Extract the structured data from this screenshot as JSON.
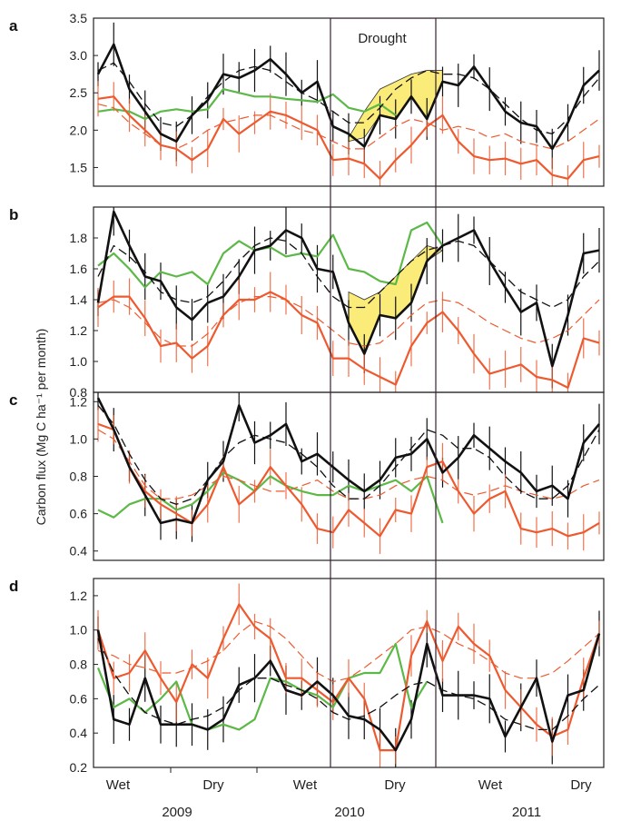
{
  "colors": {
    "black": "#111111",
    "red": "#ee5a2f",
    "green": "#5cb847",
    "drought": "#fbec7a",
    "frame": "#222222"
  },
  "figure": {
    "ylabel": "Carbon flux (Mg C ha⁻¹ per month)",
    "drought_label": "Drought",
    "season_labels": [
      "Wet",
      "Dry",
      "Wet",
      "Dry",
      "Wet",
      "Dry"
    ],
    "year_labels": [
      "2009",
      "2010",
      "2011"
    ]
  },
  "chart_data": [
    {
      "type": "line",
      "panel": "a",
      "ylim": [
        1.25,
        3.5
      ],
      "yticks": [
        "3.5",
        "3.0",
        "2.5",
        "2.0",
        "1.5"
      ],
      "ytick_values": [
        3.5,
        3.0,
        2.5,
        2.0,
        1.5
      ],
      "series": [
        {
          "color": "black",
          "style": "solid",
          "values": [
            2.75,
            3.15,
            2.55,
            2.25,
            1.95,
            1.85,
            2.2,
            2.4,
            2.75,
            2.7,
            2.8,
            2.95,
            2.75,
            2.5,
            2.65,
            2.05,
            1.95,
            1.78,
            2.2,
            2.15,
            2.45,
            2.15,
            2.65,
            2.6,
            2.85,
            2.55,
            2.25,
            2.1,
            2.05,
            1.75,
            2.1,
            2.6,
            2.8
          ]
        },
        {
          "color": "black",
          "style": "dashed",
          "values": [
            2.8,
            2.9,
            2.65,
            2.35,
            2.1,
            2.05,
            2.2,
            2.45,
            2.65,
            2.8,
            2.85,
            2.8,
            2.65,
            2.5,
            2.4,
            2.25,
            2.1,
            2.1,
            2.3,
            2.55,
            2.7,
            2.8,
            2.75,
            2.75,
            2.7,
            2.55,
            2.35,
            2.15,
            2.0,
            1.95,
            2.15,
            2.45,
            2.7
          ]
        },
        {
          "color": "red",
          "style": "solid",
          "values": [
            2.42,
            2.45,
            2.2,
            2.0,
            1.8,
            1.75,
            1.6,
            1.75,
            2.15,
            1.95,
            2.1,
            2.25,
            2.2,
            2.1,
            2.0,
            1.6,
            1.62,
            1.55,
            1.35,
            1.6,
            1.8,
            2.05,
            2.2,
            1.85,
            1.65,
            1.6,
            1.62,
            1.55,
            1.6,
            1.4,
            1.35,
            1.6,
            1.65
          ]
        },
        {
          "color": "red",
          "style": "dashed",
          "values": [
            2.35,
            2.3,
            2.1,
            1.95,
            1.8,
            1.75,
            1.85,
            2.0,
            2.1,
            2.15,
            2.2,
            2.2,
            2.1,
            2.0,
            1.95,
            1.85,
            1.75,
            1.75,
            1.9,
            2.05,
            2.15,
            2.1,
            2.0,
            2.05,
            2.0,
            1.9,
            1.95,
            1.85,
            1.8,
            1.75,
            1.85,
            2.0,
            2.15
          ]
        },
        {
          "color": "green",
          "style": "solid",
          "values": [
            2.25,
            2.28,
            2.25,
            2.15,
            2.25,
            2.28,
            2.25,
            2.28,
            2.55,
            2.5,
            2.45,
            2.45,
            2.42,
            2.4,
            2.38,
            2.48,
            2.3,
            2.25,
            2.35,
            2.2,
            null,
            null,
            null,
            null,
            null,
            null,
            null,
            null,
            null,
            null,
            null,
            null,
            null
          ]
        }
      ],
      "drought_band": {
        "upper": [
          1.9,
          2.25,
          2.55,
          2.65,
          2.75,
          2.8,
          2.8
        ],
        "lower": [
          1.85,
          1.9,
          2.2,
          2.15,
          2.45,
          2.15,
          2.65
        ],
        "start": 16
      }
    },
    {
      "type": "line",
      "panel": "b",
      "ylim": [
        0.8,
        2.0
      ],
      "yticks": [
        "1.8",
        "1.6",
        "1.4",
        "1.2",
        "1.0",
        "0.8"
      ],
      "ytick_values": [
        1.8,
        1.6,
        1.4,
        1.2,
        1.0,
        0.8
      ],
      "series": [
        {
          "color": "black",
          "style": "solid",
          "values": [
            1.38,
            1.97,
            1.75,
            1.55,
            1.52,
            1.35,
            1.27,
            1.38,
            1.42,
            1.55,
            1.72,
            1.75,
            1.85,
            1.8,
            1.6,
            1.58,
            1.25,
            1.05,
            1.3,
            1.28,
            1.38,
            1.65,
            1.75,
            1.8,
            1.85,
            1.65,
            1.48,
            1.32,
            1.38,
            0.97,
            1.3,
            1.7,
            1.72
          ]
        },
        {
          "color": "black",
          "style": "dashed",
          "values": [
            1.55,
            1.75,
            1.68,
            1.58,
            1.45,
            1.4,
            1.38,
            1.42,
            1.52,
            1.65,
            1.75,
            1.8,
            1.78,
            1.7,
            1.55,
            1.42,
            1.35,
            1.35,
            1.45,
            1.55,
            1.65,
            1.72,
            1.75,
            1.78,
            1.75,
            1.65,
            1.55,
            1.45,
            1.4,
            1.35,
            1.4,
            1.55,
            1.65
          ]
        },
        {
          "color": "red",
          "style": "solid",
          "values": [
            1.35,
            1.42,
            1.42,
            1.28,
            1.1,
            1.12,
            1.02,
            1.1,
            1.3,
            1.4,
            1.4,
            1.45,
            1.4,
            1.3,
            1.25,
            1.02,
            1.02,
            0.95,
            0.9,
            0.85,
            1.1,
            1.25,
            1.32,
            1.2,
            1.05,
            0.92,
            0.95,
            0.98,
            0.9,
            0.88,
            0.83,
            1.15,
            1.12
          ]
        },
        {
          "color": "red",
          "style": "dashed",
          "values": [
            1.38,
            1.4,
            1.35,
            1.25,
            1.15,
            1.1,
            1.1,
            1.18,
            1.3,
            1.38,
            1.42,
            1.42,
            1.4,
            1.35,
            1.28,
            1.2,
            1.12,
            1.1,
            1.12,
            1.2,
            1.3,
            1.38,
            1.4,
            1.38,
            1.32,
            1.25,
            1.2,
            1.15,
            1.12,
            1.15,
            1.2,
            1.3,
            1.4
          ]
        },
        {
          "color": "green",
          "style": "solid",
          "values": [
            1.62,
            1.7,
            1.6,
            1.48,
            1.58,
            1.55,
            1.58,
            1.5,
            1.7,
            1.78,
            1.72,
            1.74,
            1.68,
            1.7,
            1.68,
            1.82,
            1.6,
            1.58,
            1.52,
            1.5,
            1.85,
            1.9,
            1.75,
            null,
            null,
            null,
            null,
            null,
            null,
            null,
            null,
            null,
            null
          ]
        }
      ],
      "drought_band": {
        "upper": [
          1.45,
          1.4,
          1.45,
          1.55,
          1.65,
          1.75,
          1.72
        ],
        "lower": [
          1.25,
          1.05,
          1.3,
          1.28,
          1.38,
          1.65,
          1.72
        ],
        "start": 16
      }
    },
    {
      "type": "line",
      "panel": "c",
      "ylim": [
        0.35,
        1.25
      ],
      "yticks": [
        "1.2",
        "1.0",
        "0.8",
        "0.6",
        "0.4"
      ],
      "ytick_values": [
        1.2,
        1.0,
        0.8,
        0.6,
        0.4
      ],
      "series": [
        {
          "color": "black",
          "style": "solid",
          "values": [
            1.22,
            1.05,
            0.85,
            0.7,
            0.55,
            0.57,
            0.55,
            0.78,
            0.88,
            1.18,
            0.98,
            1.02,
            1.08,
            0.88,
            0.92,
            0.85,
            0.78,
            0.72,
            0.78,
            0.9,
            0.92,
            1.0,
            0.82,
            0.9,
            1.02,
            0.95,
            0.88,
            0.82,
            0.72,
            0.75,
            0.68,
            0.98,
            1.08
          ]
        },
        {
          "color": "black",
          "style": "dashed",
          "values": [
            1.18,
            1.08,
            0.92,
            0.78,
            0.68,
            0.65,
            0.68,
            0.78,
            0.9,
            0.98,
            1.02,
            1.0,
            0.98,
            0.92,
            0.85,
            0.75,
            0.68,
            0.68,
            0.75,
            0.85,
            0.95,
            1.05,
            1.02,
            0.95,
            0.95,
            0.9,
            0.8,
            0.72,
            0.68,
            0.68,
            0.75,
            0.9,
            1.05
          ]
        },
        {
          "color": "red",
          "style": "solid",
          "values": [
            1.08,
            1.05,
            0.85,
            0.72,
            0.65,
            0.6,
            0.55,
            0.65,
            0.85,
            0.65,
            0.72,
            0.85,
            0.75,
            0.65,
            0.52,
            0.5,
            0.62,
            0.55,
            0.48,
            0.62,
            0.6,
            0.85,
            0.88,
            0.72,
            0.6,
            0.68,
            0.72,
            0.52,
            0.5,
            0.52,
            0.48,
            0.5,
            0.55
          ]
        },
        {
          "color": "red",
          "style": "dashed",
          "values": [
            1.05,
            1.0,
            0.88,
            0.75,
            0.68,
            0.68,
            0.7,
            0.75,
            0.8,
            0.78,
            0.75,
            0.72,
            0.72,
            0.75,
            0.78,
            0.72,
            0.68,
            0.68,
            0.7,
            0.75,
            0.78,
            0.8,
            0.78,
            0.72,
            0.7,
            0.72,
            0.75,
            0.72,
            0.7,
            0.68,
            0.7,
            0.75,
            0.78
          ]
        },
        {
          "color": "green",
          "style": "solid",
          "values": [
            0.62,
            0.58,
            0.65,
            0.68,
            0.68,
            0.62,
            0.65,
            0.72,
            0.82,
            0.78,
            0.72,
            0.8,
            0.75,
            0.72,
            0.7,
            0.7,
            0.75,
            0.72,
            0.75,
            0.78,
            0.72,
            0.8,
            0.55,
            null,
            null,
            null,
            null,
            null,
            null,
            null,
            null,
            null,
            null
          ]
        }
      ]
    },
    {
      "type": "line",
      "panel": "d",
      "ylim": [
        0.2,
        1.3
      ],
      "yticks": [
        "1.2",
        "1.0",
        "0.8",
        "0.6",
        "0.4",
        "0.2"
      ],
      "ytick_values": [
        1.2,
        1.0,
        0.8,
        0.6,
        0.4,
        0.2
      ],
      "series": [
        {
          "color": "black",
          "style": "solid",
          "values": [
            1.0,
            0.48,
            0.45,
            0.72,
            0.45,
            0.45,
            0.45,
            0.42,
            0.48,
            0.68,
            0.72,
            0.82,
            0.65,
            0.62,
            0.7,
            0.62,
            0.5,
            0.48,
            0.42,
            0.3,
            0.48,
            0.92,
            0.62,
            0.62,
            0.62,
            0.6,
            0.38,
            0.55,
            0.72,
            0.35,
            0.62,
            0.65,
            0.98
          ]
        },
        {
          "color": "black",
          "style": "dashed",
          "values": [
            0.95,
            0.75,
            0.62,
            0.52,
            0.48,
            0.45,
            0.48,
            0.5,
            0.55,
            0.65,
            0.72,
            0.72,
            0.68,
            0.65,
            0.6,
            0.52,
            0.48,
            0.5,
            0.55,
            0.62,
            0.68,
            0.7,
            0.65,
            0.62,
            0.6,
            0.55,
            0.48,
            0.45,
            0.42,
            0.42,
            0.5,
            0.6,
            0.68
          ]
        },
        {
          "color": "red",
          "style": "solid",
          "values": [
            1.0,
            0.72,
            0.75,
            0.88,
            0.72,
            0.58,
            0.8,
            0.72,
            0.95,
            1.15,
            1.02,
            0.95,
            0.72,
            0.72,
            0.65,
            0.58,
            0.72,
            0.6,
            0.3,
            0.3,
            0.85,
            1.05,
            0.82,
            1.02,
            0.92,
            0.85,
            0.65,
            0.55,
            0.45,
            0.38,
            0.42,
            0.72,
            0.98
          ]
        },
        {
          "color": "red",
          "style": "dashed",
          "values": [
            0.88,
            0.85,
            0.8,
            0.78,
            0.75,
            0.75,
            0.78,
            0.82,
            0.88,
            0.98,
            1.05,
            1.02,
            0.95,
            0.85,
            0.75,
            0.7,
            0.72,
            0.78,
            0.85,
            0.92,
            1.0,
            1.02,
            0.98,
            0.92,
            0.88,
            0.82,
            0.75,
            0.72,
            0.72,
            0.75,
            0.82,
            0.9,
            0.98
          ]
        },
        {
          "color": "green",
          "style": "solid",
          "values": [
            0.78,
            0.55,
            0.6,
            0.52,
            0.6,
            0.7,
            0.45,
            0.42,
            0.45,
            0.42,
            0.48,
            0.72,
            0.7,
            0.65,
            0.62,
            0.55,
            0.72,
            0.75,
            0.75,
            0.92,
            0.55,
            0.7,
            null,
            null,
            null,
            null,
            null,
            null,
            null,
            null,
            null,
            null,
            null
          ]
        }
      ]
    }
  ]
}
